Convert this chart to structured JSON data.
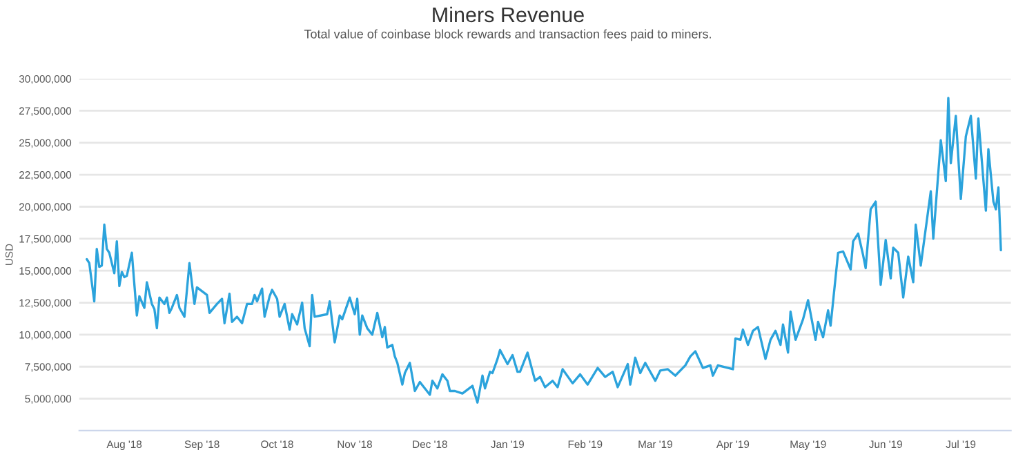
{
  "chart_data": {
    "type": "line",
    "title": "Miners Revenue",
    "subtitle": "Total value of coinbase block rewards and transaction fees paid to miners.",
    "ylabel": "USD",
    "x": [
      "2018-07-17",
      "2018-07-18",
      "2018-07-20",
      "2018-07-21",
      "2018-07-22",
      "2018-07-23",
      "2018-07-24",
      "2018-07-25",
      "2018-07-26",
      "2018-07-28",
      "2018-07-29",
      "2018-07-30",
      "2018-07-31",
      "2018-08-01",
      "2018-08-02",
      "2018-08-04",
      "2018-08-06",
      "2018-08-07",
      "2018-08-09",
      "2018-08-10",
      "2018-08-12",
      "2018-08-13",
      "2018-08-14",
      "2018-08-15",
      "2018-08-17",
      "2018-08-18",
      "2018-08-19",
      "2018-08-20",
      "2018-08-22",
      "2018-08-23",
      "2018-08-25",
      "2018-08-27",
      "2018-08-29",
      "2018-08-30",
      "2018-09-01",
      "2018-09-03",
      "2018-09-04",
      "2018-09-07",
      "2018-09-09",
      "2018-09-10",
      "2018-09-12",
      "2018-09-13",
      "2018-09-15",
      "2018-09-17",
      "2018-09-19",
      "2018-09-21",
      "2018-09-22",
      "2018-09-23",
      "2018-09-25",
      "2018-09-26",
      "2018-09-28",
      "2018-09-29",
      "2018-10-01",
      "2018-10-02",
      "2018-10-04",
      "2018-10-06",
      "2018-10-07",
      "2018-10-09",
      "2018-10-11",
      "2018-10-12",
      "2018-10-14",
      "2018-10-15",
      "2018-10-16",
      "2018-10-21",
      "2018-10-22",
      "2018-10-24",
      "2018-10-26",
      "2018-10-27",
      "2018-10-30",
      "2018-11-01",
      "2018-11-02",
      "2018-11-03",
      "2018-11-04",
      "2018-11-06",
      "2018-11-08",
      "2018-11-10",
      "2018-11-12",
      "2018-11-13",
      "2018-11-14",
      "2018-11-16",
      "2018-11-17",
      "2018-11-18",
      "2018-11-20",
      "2018-11-21",
      "2018-11-23",
      "2018-11-25",
      "2018-11-27",
      "2018-11-29",
      "2018-12-01",
      "2018-12-02",
      "2018-12-04",
      "2018-12-06",
      "2018-12-08",
      "2018-12-09",
      "2018-12-11",
      "2018-12-14",
      "2018-12-18",
      "2018-12-20",
      "2018-12-22",
      "2018-12-23",
      "2018-12-25",
      "2018-12-26",
      "2018-12-28",
      "2018-12-29",
      "2019-01-01",
      "2019-01-03",
      "2019-01-05",
      "2019-01-06",
      "2019-01-09",
      "2019-01-12",
      "2019-01-14",
      "2019-01-16",
      "2019-01-19",
      "2019-01-21",
      "2019-01-23",
      "2019-01-27",
      "2019-01-30",
      "2019-02-02",
      "2019-02-06",
      "2019-02-09",
      "2019-02-12",
      "2019-02-14",
      "2019-02-18",
      "2019-02-19",
      "2019-02-21",
      "2019-02-23",
      "2019-02-25",
      "2019-03-01",
      "2019-03-03",
      "2019-03-06",
      "2019-03-09",
      "2019-03-13",
      "2019-03-15",
      "2019-03-17",
      "2019-03-20",
      "2019-03-23",
      "2019-03-24",
      "2019-03-26",
      "2019-04-01",
      "2019-04-02",
      "2019-04-04",
      "2019-04-05",
      "2019-04-07",
      "2019-04-09",
      "2019-04-11",
      "2019-04-14",
      "2019-04-16",
      "2019-04-18",
      "2019-04-20",
      "2019-04-21",
      "2019-04-23",
      "2019-04-24",
      "2019-04-26",
      "2019-04-29",
      "2019-05-01",
      "2019-05-04",
      "2019-05-05",
      "2019-05-07",
      "2019-05-09",
      "2019-05-10",
      "2019-05-13",
      "2019-05-15",
      "2019-05-18",
      "2019-05-19",
      "2019-05-21",
      "2019-05-23",
      "2019-05-24",
      "2019-05-26",
      "2019-05-28",
      "2019-05-30",
      "2019-06-01",
      "2019-06-03",
      "2019-06-04",
      "2019-06-06",
      "2019-06-08",
      "2019-06-10",
      "2019-06-12",
      "2019-06-13",
      "2019-06-15",
      "2019-06-19",
      "2019-06-20",
      "2019-06-23",
      "2019-06-25",
      "2019-06-26",
      "2019-06-27",
      "2019-06-29",
      "2019-07-01",
      "2019-07-03",
      "2019-07-05",
      "2019-07-07",
      "2019-07-08",
      "2019-07-11",
      "2019-07-12",
      "2019-07-14",
      "2019-07-15",
      "2019-07-16",
      "2019-07-17"
    ],
    "series": [
      {
        "color": "#2ba3dc",
        "values": [
          15900000,
          15600000,
          12600000,
          16700000,
          15300000,
          15400000,
          18600000,
          16700000,
          16400000,
          14800000,
          17300000,
          13800000,
          14900000,
          14500000,
          14600000,
          16400000,
          11500000,
          13000000,
          12100000,
          14100000,
          12400000,
          12000000,
          10500000,
          12900000,
          12400000,
          12900000,
          11700000,
          12100000,
          13100000,
          12100000,
          11400000,
          15600000,
          12400000,
          13700000,
          13400000,
          13100000,
          11700000,
          12400000,
          12800000,
          10900000,
          13200000,
          11000000,
          11400000,
          10900000,
          12400000,
          12400000,
          13100000,
          12600000,
          13600000,
          11400000,
          13000000,
          13500000,
          12800000,
          11400000,
          12400000,
          10400000,
          11600000,
          10800000,
          12500000,
          10500000,
          9100000,
          13100000,
          11400000,
          11600000,
          12600000,
          9400000,
          11500000,
          11200000,
          12900000,
          11600000,
          12800000,
          10000000,
          11500000,
          10500000,
          10000000,
          11700000,
          9800000,
          10600000,
          9000000,
          9200000,
          8300000,
          7800000,
          6100000,
          7000000,
          7800000,
          5600000,
          6300000,
          5800000,
          5300000,
          6400000,
          5800000,
          6900000,
          6400000,
          5600000,
          5600000,
          5400000,
          6000000,
          4700000,
          6800000,
          5800000,
          7100000,
          7000000,
          8100000,
          8800000,
          7700000,
          8400000,
          7100000,
          7100000,
          8600000,
          6400000,
          6700000,
          5900000,
          6400000,
          5900000,
          7300000,
          6200000,
          6900000,
          6100000,
          7400000,
          6700000,
          7100000,
          5900000,
          7700000,
          6100000,
          8200000,
          7000000,
          7800000,
          6400000,
          7200000,
          7300000,
          6800000,
          7600000,
          8300000,
          8700000,
          7400000,
          7600000,
          6800000,
          7600000,
          7300000,
          9700000,
          9600000,
          10400000,
          9200000,
          10300000,
          10600000,
          8100000,
          9600000,
          10300000,
          9200000,
          10800000,
          8600000,
          11800000,
          9600000,
          11200000,
          12700000,
          9600000,
          11000000,
          9800000,
          11900000,
          10700000,
          16400000,
          16500000,
          15100000,
          17300000,
          17900000,
          16200000,
          15200000,
          19800000,
          20400000,
          13900000,
          17400000,
          14400000,
          16800000,
          16400000,
          12900000,
          16100000,
          14100000,
          18600000,
          15400000,
          21200000,
          17500000,
          25200000,
          22000000,
          28500000,
          23400000,
          27100000,
          20600000,
          25500000,
          27100000,
          22200000,
          26900000,
          19700000,
          24500000,
          20400000,
          19800000,
          21500000,
          16600000
        ]
      }
    ],
    "xlim": [
      "2018-07-14",
      "2019-07-21"
    ],
    "xticks": [
      {
        "value": "2018-08-01",
        "label": "Aug '18"
      },
      {
        "value": "2018-09-01",
        "label": "Sep '18"
      },
      {
        "value": "2018-10-01",
        "label": "Oct '18"
      },
      {
        "value": "2018-11-01",
        "label": "Nov '18"
      },
      {
        "value": "2018-12-01",
        "label": "Dec '18"
      },
      {
        "value": "2019-01-01",
        "label": "Jan '19"
      },
      {
        "value": "2019-02-01",
        "label": "Feb '19"
      },
      {
        "value": "2019-03-01",
        "label": "Mar '19"
      },
      {
        "value": "2019-04-01",
        "label": "Apr '19"
      },
      {
        "value": "2019-05-01",
        "label": "May '19"
      },
      {
        "value": "2019-06-01",
        "label": "Jun '19"
      },
      {
        "value": "2019-07-01",
        "label": "Jul '19"
      }
    ],
    "ylim": [
      2500000,
      30000000
    ],
    "yticks": [
      {
        "value": 5000000,
        "label": "5,000,000"
      },
      {
        "value": 7500000,
        "label": "7,500,000"
      },
      {
        "value": 10000000,
        "label": "10,000,000"
      },
      {
        "value": 12500000,
        "label": "12,500,000"
      },
      {
        "value": 15000000,
        "label": "15,000,000"
      },
      {
        "value": 17500000,
        "label": "17,500,000"
      },
      {
        "value": 20000000,
        "label": "20,000,000"
      },
      {
        "value": 22500000,
        "label": "22,500,000"
      },
      {
        "value": 25000000,
        "label": "25,000,000"
      },
      {
        "value": 27500000,
        "label": "27,500,000"
      },
      {
        "value": 30000000,
        "label": "30,000,000"
      }
    ],
    "grid": "y",
    "legend": false
  }
}
